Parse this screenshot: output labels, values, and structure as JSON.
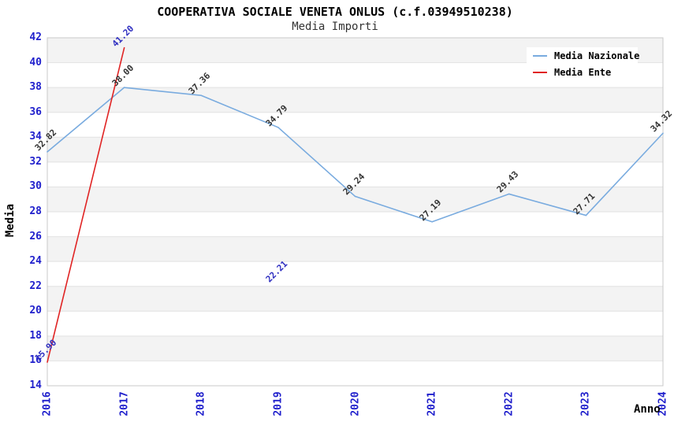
{
  "title": "COOPERATIVA SOCIALE VENETA ONLUS (c.f.03949510238)",
  "subtitle": "Media Importi",
  "axes": {
    "y_label": "Media",
    "x_label": "Anno",
    "y_ticks": [
      42,
      40,
      38,
      36,
      34,
      32,
      30,
      28,
      26,
      24,
      22,
      20,
      18,
      16,
      14
    ],
    "x_ticks": [
      "2016",
      "2017",
      "2018",
      "2019",
      "2020",
      "2021",
      "2022",
      "2023",
      "2024"
    ]
  },
  "legend": {
    "position": "top-right",
    "items": [
      {
        "label": "Media Nazionale",
        "color": "#79abdf"
      },
      {
        "label": "Media Ente",
        "color": "#e02424"
      }
    ]
  },
  "colors": {
    "background": "#ffffff",
    "band": "#f3f3f3",
    "gridline": "#e2e2e2",
    "plot_border": "#c8c8c8",
    "tick_label": "#2020cc"
  },
  "chart_data": {
    "type": "line",
    "title": "COOPERATIVA SOCIALE VENETA ONLUS (c.f.03949510238)",
    "subtitle": "Media Importi",
    "xlabel": "Anno",
    "ylabel": "Media",
    "x": [
      2016,
      2017,
      2018,
      2019,
      2020,
      2021,
      2022,
      2023,
      2024
    ],
    "ylim": [
      14,
      42
    ],
    "grid": "horizontal-bands",
    "legend_position": "top-right",
    "series": [
      {
        "name": "Media Nazionale",
        "color": "#79abdf",
        "label_color": "#333333",
        "values": [
          32.82,
          38.0,
          37.36,
          34.79,
          29.24,
          27.19,
          29.43,
          27.71,
          34.32
        ]
      },
      {
        "name": "Media Ente",
        "color": "#e02424",
        "label_color": "#2e2ec0",
        "values": [
          15.9,
          41.2,
          null,
          22.21,
          null,
          null,
          null,
          null,
          null
        ]
      }
    ]
  }
}
